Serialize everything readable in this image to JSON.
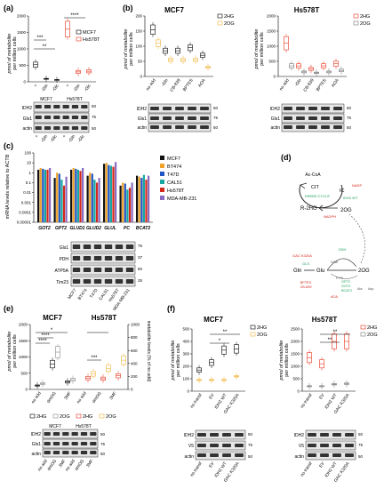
{
  "panels": {
    "a": {
      "letter": "(a)",
      "ylabel": [
        "pmol of metabolite",
        "per million cells"
      ],
      "y_ticks": [
        "0",
        "500",
        "1000",
        "1500",
        "2000"
      ],
      "legend": [
        "MCF7",
        "Hs578T"
      ],
      "colors": {
        "mcf7": "#000000",
        "hs578t": "#e8311a"
      },
      "x_labels": [
        "+",
        "-Gln",
        "-Glc",
        "+",
        "-Gln",
        "-Glc"
      ],
      "significance": [
        "***",
        "**",
        "****"
      ],
      "blot_headers": [
        "MCF7",
        "Hs578T"
      ],
      "blot_lanes": [
        "+",
        "-Gln",
        "-Glc",
        "+",
        "-Gln",
        "-Glc"
      ],
      "blot_rows": [
        "IDH2",
        "Gls1",
        "actin"
      ],
      "mw_markers": [
        "50",
        "75",
        "50"
      ]
    },
    "b": {
      "letter": "(b)",
      "titles": [
        "MCF7",
        "Hs578T"
      ],
      "ylabel": [
        "pmol of metabolite",
        "per million cells"
      ],
      "mcf7_y_ticks": [
        "0",
        "50",
        "100",
        "150",
        "200"
      ],
      "hs_y_ticks": [
        "0",
        "500",
        "1000",
        "1500",
        "2000"
      ],
      "legend": [
        "2HG",
        "2OG"
      ],
      "x_labels": [
        "no add",
        "-Gln",
        "CB-839",
        "BPTES",
        "AOA"
      ],
      "colors": {
        "hg_mcf7": "#000000",
        "og": "#f0b43a",
        "hg_hs": "#e8311a",
        "og_hs": "#777777"
      },
      "blot_rows": [
        "IDH2",
        "Gls1",
        "actin"
      ],
      "mw_markers": [
        "50",
        "75",
        "50"
      ]
    },
    "c": {
      "letter": "(c)",
      "ylabel": "mRNA levels relative to ACTB",
      "y_ticks": [
        "0.00001",
        "0.0001",
        "0.001",
        "0.01",
        "0.1",
        "1",
        "10",
        "100"
      ],
      "genes": [
        "GOT2",
        "GPT2",
        "GLUD1",
        "GLUD2",
        "GLUL",
        "PC",
        "BCAT2"
      ],
      "legend": [
        "MCF7",
        "BT474",
        "T47D",
        "CAL51",
        "Hs578T",
        "MDA-MB-231"
      ],
      "blot_rows": [
        "Gls1",
        "PDH",
        "ATP5A",
        "Tim23"
      ],
      "blot_lanes": [
        "MCF7",
        "BT474",
        "T47D",
        "CAL51",
        "Hs578T",
        "MDA-MB-231"
      ],
      "mw_markers": [
        "75",
        "37",
        "50",
        "25"
      ]
    },
    "d": {
      "letter": "(d)",
      "labels": {
        "accoa": "Ac-CoA",
        "cit": "CIT",
        "krebs": "KREBS CYCLE",
        "ic": "IC",
        "nadp": "NADP",
        "nadph": "NADPH",
        "idh": "IDH2 WT",
        "r2hg": "R-2HG",
        "og": "2OG",
        "gln": "Gln",
        "glu": "Glu",
        "og2": "2OG",
        "gls": "GLS",
        "gac": "GAC K320A",
        "bptes": "BPTES",
        "cb": "CB-839",
        "gdh": "GDH",
        "gpt": "GPT2",
        "got": "GOT2",
        "bcat": "BCAT2",
        "aoa": "AOA",
        "pyr": "PYR",
        "oaa": "OAA",
        "ala": "Ala",
        "asp": "Asp"
      },
      "colors": {
        "green": "#1a9e55",
        "red": "#d4281c",
        "gray": "#555555"
      }
    },
    "e": {
      "letter": "(e)",
      "titles": [
        "MCF7",
        "Hs578T"
      ],
      "ylabel": [
        "pmol of metabolite",
        "per million cells"
      ],
      "y_ticks": [
        "0",
        "500",
        "1000",
        "1500",
        "2000"
      ],
      "y_ticks_right": [
        "0",
        "200",
        "400",
        "600",
        "800",
        "1000"
      ],
      "right_label": "metabolite levels (% of no add)",
      "x_labels": [
        "no add",
        "dmOG",
        "3MF"
      ],
      "significance": [
        "****",
        "*",
        "****",
        "***"
      ],
      "legend": [
        "2HG",
        "2OG",
        "2HG",
        "2OG"
      ],
      "blot_headers": [
        "MCF7",
        "Hs578T"
      ],
      "blot_lanes": [
        "no add",
        "dmOG",
        "3MF",
        "no add",
        "dmOG",
        "3MF"
      ],
      "blot_rows": [
        "IDH2",
        "Gls1",
        "actin"
      ],
      "mw_markers": [
        "50",
        "75",
        "50"
      ]
    },
    "f": {
      "letter": "(f)",
      "titles": [
        "MCF7",
        "Hs578T"
      ],
      "ylabel": [
        "pmol of metabolite",
        "per million cells"
      ],
      "mcf7_y_ticks": [
        "0",
        "100",
        "200",
        "300",
        "400",
        "500"
      ],
      "hs_y_ticks": [
        "0",
        "500",
        "1000",
        "1500",
        "2000",
        "2500"
      ],
      "x_labels": [
        "no transf",
        "EV",
        "IDH2 WT",
        "GAC K320A"
      ],
      "significance": [
        "*",
        "**",
        "**"
      ],
      "legend": [
        "2HG",
        "2OG"
      ],
      "blot_rows": [
        "IDH2",
        "V5",
        "actin"
      ],
      "mw_markers": [
        "50",
        "75",
        "50"
      ]
    }
  },
  "chart_data": [
    {
      "panel": "a",
      "type": "scatter",
      "categories": [
        "MCF7 +",
        "MCF7 -Gln",
        "MCF7 -Glc",
        "Hs578T +",
        "Hs578T -Gln",
        "Hs578T -Glc"
      ],
      "series": [
        {
          "name": "MCF7",
          "values": [
            520,
            90,
            60,
            null,
            null,
            null
          ]
        },
        {
          "name": "Hs578T",
          "values": [
            null,
            null,
            null,
            1600,
            300,
            320
          ]
        }
      ],
      "ylim": [
        0,
        2000
      ]
    },
    {
      "panel": "b-MCF7",
      "type": "scatter",
      "categories": [
        "no add",
        "-Gln",
        "CB-839",
        "BPTES",
        "AOA"
      ],
      "series": [
        {
          "name": "2HG",
          "values": [
            155,
            85,
            85,
            95,
            70
          ]
        },
        {
          "name": "2OG",
          "values": [
            110,
            55,
            55,
            55,
            30
          ]
        }
      ],
      "ylim": [
        0,
        200
      ]
    },
    {
      "panel": "b-Hs578T",
      "type": "scatter",
      "categories": [
        "no add",
        "-Gln",
        "CB-839",
        "BPTES",
        "AOA"
      ],
      "series": [
        {
          "name": "2HG",
          "values": [
            1100,
            350,
            250,
            350,
            420
          ]
        },
        {
          "name": "2OG",
          "values": [
            350,
            150,
            120,
            150,
            200
          ]
        }
      ],
      "ylim": [
        0,
        2000
      ]
    },
    {
      "panel": "c",
      "type": "bar",
      "log_scale": true,
      "categories": [
        "GOT2",
        "GPT2",
        "GLUD1",
        "GLUD2",
        "GLUL",
        "PC",
        "BCAT2"
      ],
      "series": [
        {
          "name": "MCF7",
          "values": [
            2,
            0.3,
            2,
            0.5,
            8,
            0.05,
            0.5
          ]
        },
        {
          "name": "BT474",
          "values": [
            3,
            1,
            3,
            1,
            10,
            0.1,
            0.4
          ]
        },
        {
          "name": "T47D",
          "values": [
            2.5,
            0.8,
            2.5,
            0.8,
            6,
            0.08,
            0.3
          ]
        },
        {
          "name": "CAL51",
          "values": [
            2,
            0.2,
            2,
            0.2,
            5,
            0.02,
            0.6
          ]
        },
        {
          "name": "Hs578T",
          "values": [
            2,
            0.05,
            1.5,
            0.1,
            4,
            0.03,
            0.2
          ]
        },
        {
          "name": "MDA-MB-231",
          "values": [
            3,
            0.4,
            3,
            0.3,
            12,
            0.1,
            0.5
          ]
        }
      ],
      "ylim": [
        1e-05,
        100
      ]
    },
    {
      "panel": "e",
      "type": "scatter",
      "categories": [
        "MCF7 no add",
        "MCF7 dmOG",
        "MCF7 3MF",
        "Hs578T no add",
        "Hs578T dmOG",
        "Hs578T 3MF"
      ],
      "series": [
        {
          "name": "2HG",
          "values": [
            120,
            780,
            230,
            350,
            330,
            420
          ]
        },
        {
          "name": "2OG",
          "values": [
            180,
            1150,
            300,
            480,
            650,
            900
          ]
        }
      ],
      "ylim": [
        0,
        2000
      ]
    },
    {
      "panel": "f-MCF7",
      "type": "scatter",
      "categories": [
        "no transf",
        "EV",
        "IDH2 WT",
        "GAC K320A"
      ],
      "series": [
        {
          "name": "2HG",
          "values": [
            170,
            230,
            330,
            340
          ]
        },
        {
          "name": "2OG",
          "values": [
            90,
            90,
            90,
            120
          ]
        }
      ],
      "ylim": [
        0,
        500
      ]
    },
    {
      "panel": "f-Hs578T",
      "type": "scatter",
      "categories": [
        "no transf",
        "EV",
        "IDH2 WT",
        "GAC K320A"
      ],
      "series": [
        {
          "name": "2HG",
          "values": [
            1350,
            1100,
            2000,
            2000
          ]
        },
        {
          "name": "2OG",
          "values": [
            200,
            200,
            280,
            300
          ]
        }
      ],
      "ylim": [
        0,
        2500
      ]
    }
  ]
}
